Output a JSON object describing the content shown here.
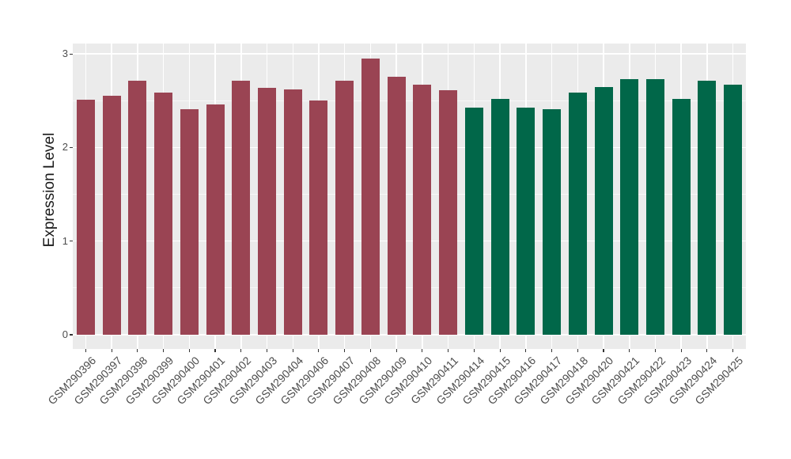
{
  "chart_data": {
    "type": "bar",
    "title": "",
    "xlabel": "",
    "ylabel": "Expression Level",
    "ylim": [
      0,
      3.15
    ],
    "yticks": [
      0,
      1,
      2,
      3
    ],
    "ytick_labels": [
      "0",
      "1",
      "2",
      "3"
    ],
    "minor_gridlines": [
      0.5,
      1.5,
      2.5
    ],
    "legend": "none",
    "grid": "white major gridlines at y ticks and bar centers, minor at half steps, on gray panel",
    "panel_bg": "#EBEBEB",
    "grid_color": "#FFFFFF",
    "axis_text_color": "#4D4D4D",
    "tick_color": "#333333",
    "groups": {
      "group1": {
        "color": "#9A4453"
      },
      "group2": {
        "color": "#016749"
      }
    },
    "categories": [
      "GSM290396",
      "GSM290397",
      "GSM290398",
      "GSM290399",
      "GSM290400",
      "GSM290401",
      "GSM290402",
      "GSM290403",
      "GSM290404",
      "GSM290406",
      "GSM290407",
      "GSM290408",
      "GSM290409",
      "GSM290410",
      "GSM290411",
      "GSM290414",
      "GSM290415",
      "GSM290416",
      "GSM290417",
      "GSM290418",
      "GSM290420",
      "GSM290421",
      "GSM290422",
      "GSM290423",
      "GSM290424",
      "GSM290425"
    ],
    "bars": [
      {
        "label": "GSM290396",
        "value": 2.51,
        "group": "group1"
      },
      {
        "label": "GSM290397",
        "value": 2.55,
        "group": "group1"
      },
      {
        "label": "GSM290398",
        "value": 2.71,
        "group": "group1"
      },
      {
        "label": "GSM290399",
        "value": 2.59,
        "group": "group1"
      },
      {
        "label": "GSM290400",
        "value": 2.41,
        "group": "group1"
      },
      {
        "label": "GSM290401",
        "value": 2.46,
        "group": "group1"
      },
      {
        "label": "GSM290402",
        "value": 2.71,
        "group": "group1"
      },
      {
        "label": "GSM290403",
        "value": 2.64,
        "group": "group1"
      },
      {
        "label": "GSM290404",
        "value": 2.62,
        "group": "group1"
      },
      {
        "label": "GSM290406",
        "value": 2.5,
        "group": "group1"
      },
      {
        "label": "GSM290407",
        "value": 2.71,
        "group": "group1"
      },
      {
        "label": "GSM290408",
        "value": 2.95,
        "group": "group1"
      },
      {
        "label": "GSM290409",
        "value": 2.76,
        "group": "group1"
      },
      {
        "label": "GSM290410",
        "value": 2.67,
        "group": "group1"
      },
      {
        "label": "GSM290411",
        "value": 2.61,
        "group": "group1"
      },
      {
        "label": "GSM290414",
        "value": 2.43,
        "group": "group2"
      },
      {
        "label": "GSM290415",
        "value": 2.52,
        "group": "group2"
      },
      {
        "label": "GSM290416",
        "value": 2.43,
        "group": "group2"
      },
      {
        "label": "GSM290417",
        "value": 2.41,
        "group": "group2"
      },
      {
        "label": "GSM290418",
        "value": 2.59,
        "group": "group2"
      },
      {
        "label": "GSM290420",
        "value": 2.65,
        "group": "group2"
      },
      {
        "label": "GSM290421",
        "value": 2.73,
        "group": "group2"
      },
      {
        "label": "GSM290422",
        "value": 2.73,
        "group": "group2"
      },
      {
        "label": "GSM290423",
        "value": 2.52,
        "group": "group2"
      },
      {
        "label": "GSM290424",
        "value": 2.71,
        "group": "group2"
      },
      {
        "label": "GSM290425",
        "value": 2.67,
        "group": "group2"
      }
    ]
  }
}
